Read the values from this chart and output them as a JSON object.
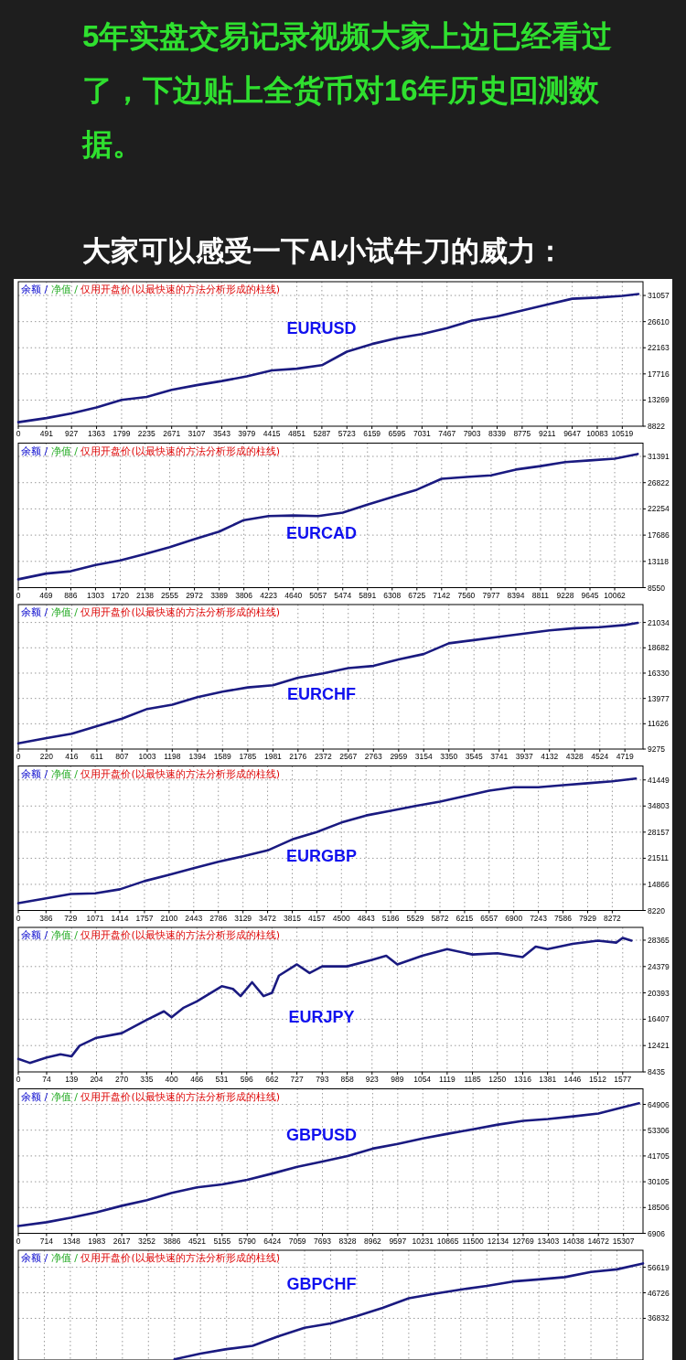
{
  "chart_data": [
    {
      "type": "other",
      "title": "5年实盘交易记录视频大家上边已经看过了，下边贴上全货币对16年历史回测数据。",
      "subtitle": "大家可以感受一下AI小试牛刀的威力："
    },
    {
      "type": "line",
      "title": "EURUSD",
      "annotations": [
        "余额 /",
        "净值 /",
        "仅用开盘价(以最快速的方法分析形成的柱线)"
      ],
      "grid": true,
      "x": [
        0,
        491,
        927,
        1363,
        1799,
        2235,
        2671,
        3107,
        3543,
        3979,
        4415,
        4851,
        5287,
        5723,
        6159,
        6595,
        7031,
        7467,
        7903,
        8339,
        8775,
        9211,
        9647,
        10083,
        10519,
        10800
      ],
      "series": [
        {
          "color": "#1a1a80",
          "values": [
            9500,
            10200,
            11000,
            12000,
            13300,
            13800,
            15000,
            15800,
            16500,
            17300,
            18300,
            18600,
            19200,
            21500,
            22800,
            23800,
            24500,
            25500,
            26800,
            27500,
            28500,
            29500,
            30500,
            30700,
            31000,
            31300
          ]
        }
      ],
      "xlim": [
        0,
        10880
      ],
      "xticks": [
        0,
        491,
        927,
        1363,
        1799,
        2235,
        2671,
        3107,
        3543,
        3979,
        4415,
        4851,
        5287,
        5723,
        6159,
        6595,
        7031,
        7467,
        7903,
        8339,
        8775,
        9211,
        9647,
        10083,
        10519
      ],
      "ylim": [
        8822,
        33400
      ],
      "yticks": [
        8822,
        13269,
        17716,
        22163,
        26610,
        31057
      ]
    },
    {
      "type": "line",
      "title": "EURCAD",
      "annotations": [
        "余额 /",
        "净值 /",
        "仅用开盘价(以最快速的方法分析形成的柱线)"
      ],
      "grid": true,
      "x": [
        0,
        469,
        886,
        1303,
        1720,
        2138,
        2555,
        2972,
        3389,
        3806,
        4223,
        4640,
        5057,
        5474,
        5891,
        6308,
        6725,
        7142,
        7560,
        7977,
        8394,
        8811,
        9228,
        9645,
        10062,
        10450
      ],
      "series": [
        {
          "color": "#1a1a80",
          "values": [
            10000,
            11000,
            11400,
            12500,
            13300,
            14400,
            15600,
            17000,
            18300,
            20300,
            21000,
            21100,
            21000,
            21600,
            23000,
            24300,
            25600,
            27500,
            27800,
            28100,
            29100,
            29700,
            30400,
            30700,
            31000,
            31800
          ]
        }
      ],
      "xlim": [
        0,
        10540
      ],
      "xticks": [
        0,
        469,
        886,
        1303,
        1720,
        2138,
        2555,
        2972,
        3389,
        3806,
        4223,
        4640,
        5057,
        5474,
        5891,
        6308,
        6725,
        7142,
        7560,
        7977,
        8394,
        8811,
        9228,
        9645,
        10062
      ],
      "ylim": [
        8550,
        33700
      ],
      "yticks": [
        8550,
        13118,
        17686,
        22254,
        26822,
        31391
      ]
    },
    {
      "type": "line",
      "title": "EURCHF",
      "annotations": [
        "余额 /",
        "净值 /",
        "仅用开盘价(以最快速的方法分析形成的柱线)"
      ],
      "grid": true,
      "x": [
        0,
        220,
        416,
        611,
        807,
        1003,
        1198,
        1394,
        1589,
        1785,
        1981,
        2176,
        2372,
        2567,
        2763,
        2959,
        3154,
        3350,
        3545,
        3741,
        3937,
        4132,
        4328,
        4524,
        4719,
        4820
      ],
      "series": [
        {
          "color": "#1a1a80",
          "values": [
            9800,
            10300,
            10700,
            11400,
            12100,
            13000,
            13400,
            14100,
            14600,
            15000,
            15200,
            15900,
            16300,
            16800,
            17000,
            17600,
            18100,
            19100,
            19400,
            19700,
            20000,
            20300,
            20500,
            20600,
            20800,
            21000
          ]
        }
      ],
      "xlim": [
        0,
        4860
      ],
      "xticks": [
        0,
        220,
        416,
        611,
        807,
        1003,
        1198,
        1394,
        1589,
        1785,
        1981,
        2176,
        2372,
        2567,
        2763,
        2959,
        3154,
        3350,
        3545,
        3741,
        3937,
        4132,
        4328,
        4524,
        4719
      ],
      "ylim": [
        9275,
        22700
      ],
      "yticks": [
        9275,
        11626,
        13977,
        16330,
        18682,
        21034
      ]
    },
    {
      "type": "line",
      "title": "EURGBP",
      "annotations": [
        "余额 /",
        "净值 /",
        "仅用开盘价(以最快速的方法分析形成的柱线)"
      ],
      "grid": true,
      "x": [
        0,
        386,
        729,
        1071,
        1414,
        1757,
        2100,
        2443,
        2786,
        3129,
        3472,
        3815,
        4157,
        4500,
        4843,
        5186,
        5529,
        5872,
        6215,
        6557,
        6900,
        7243,
        7586,
        7929,
        8272,
        8600
      ],
      "series": [
        {
          "color": "#1a1a80",
          "values": [
            10100,
            11300,
            12400,
            12600,
            13600,
            15700,
            17300,
            19000,
            20600,
            22000,
            23500,
            26300,
            28200,
            30600,
            32400,
            33600,
            34800,
            35900,
            37300,
            38700,
            39600,
            39600,
            40100,
            40600,
            41100,
            41800
          ]
        }
      ],
      "xlim": [
        0,
        8700
      ],
      "xticks": [
        0,
        386,
        729,
        1071,
        1414,
        1757,
        2100,
        2443,
        2786,
        3129,
        3472,
        3815,
        4157,
        4500,
        4843,
        5186,
        5529,
        5872,
        6215,
        6557,
        6900,
        7243,
        7586,
        7929,
        8272
      ],
      "ylim": [
        8220,
        45000
      ],
      "yticks": [
        8220,
        14866,
        21511,
        28157,
        34803,
        41449
      ]
    },
    {
      "type": "line",
      "title": "EURJPY",
      "annotations": [
        "余额 /",
        "净值 /",
        "仅用开盘价(以最快速的方法分析形成的柱线)"
      ],
      "grid": true,
      "x": [
        0,
        30,
        74,
        110,
        139,
        160,
        204,
        270,
        335,
        380,
        400,
        430,
        466,
        531,
        560,
        580,
        610,
        640,
        662,
        680,
        727,
        760,
        793,
        858,
        923,
        960,
        989,
        1054,
        1119,
        1185,
        1250,
        1316,
        1350,
        1381,
        1446,
        1512,
        1560,
        1577,
        1600
      ],
      "series": [
        {
          "color": "#1a1a80",
          "values": [
            10400,
            9800,
            10600,
            11100,
            10800,
            12400,
            13600,
            14300,
            16300,
            17600,
            16700,
            18100,
            19100,
            21400,
            21000,
            19900,
            22000,
            19900,
            20400,
            23000,
            24700,
            23400,
            24400,
            24400,
            25400,
            26000,
            24700,
            26000,
            27000,
            26200,
            26400,
            25800,
            27400,
            27000,
            27800,
            28300,
            28000,
            28700,
            28300
          ]
        }
      ],
      "xlim": [
        0,
        1630
      ],
      "xticks": [
        0,
        74,
        139,
        204,
        270,
        335,
        400,
        466,
        531,
        596,
        662,
        727,
        793,
        858,
        923,
        989,
        1054,
        1119,
        1185,
        1250,
        1316,
        1381,
        1446,
        1512,
        1577
      ],
      "ylim": [
        8435,
        30300
      ],
      "yticks": [
        8435,
        12421,
        16407,
        20393,
        24379,
        28365
      ]
    },
    {
      "type": "line",
      "title": "GBPUSD",
      "annotations": [
        "余额 /",
        "净值 /",
        "仅用开盘价(以最快速的方法分析形成的柱线)"
      ],
      "grid": true,
      "x": [
        0,
        714,
        1348,
        1983,
        2617,
        3252,
        3886,
        4521,
        5155,
        5790,
        6424,
        7059,
        7693,
        8328,
        8962,
        9597,
        10231,
        10865,
        11500,
        12134,
        12769,
        13403,
        14038,
        14672,
        15307,
        15700
      ],
      "series": [
        {
          "color": "#1a1a80",
          "values": [
            10200,
            11900,
            14000,
            16400,
            19300,
            21800,
            25100,
            27600,
            28900,
            31000,
            33800,
            36800,
            39200,
            41700,
            45000,
            47100,
            49600,
            51700,
            53700,
            55800,
            57500,
            58300,
            59500,
            60800,
            63700,
            65400
          ]
        }
      ],
      "xlim": [
        0,
        15800
      ],
      "xticks": [
        0,
        714,
        1348,
        1983,
        2617,
        3252,
        3886,
        4521,
        5155,
        5790,
        6424,
        7059,
        7693,
        8328,
        8962,
        9597,
        10231,
        10865,
        11500,
        12134,
        12769,
        13403,
        14038,
        14672,
        15307
      ],
      "ylim": [
        6906,
        71900
      ],
      "yticks": [
        6906,
        18506,
        30105,
        41705,
        53306,
        64906
      ]
    },
    {
      "type": "line",
      "title": "GBPCHF",
      "annotations": [
        "余额 /",
        "净值 /",
        "仅用开盘价(以最快速的方法分析形成的柱线)"
      ],
      "grid": true,
      "tick_labels": "y",
      "categories": [
        null,
        null,
        null,
        null,
        null,
        null,
        null,
        null,
        null,
        null,
        null,
        null,
        null,
        null,
        null,
        null,
        null,
        null,
        null,
        null,
        null,
        null,
        null,
        null,
        null
      ],
      "series": [
        {
          "color": "#1a1a80",
          "values": [
            null,
            null,
            null,
            null,
            null,
            null,
            21000,
            23200,
            24900,
            26200,
            29900,
            33200,
            34900,
            37700,
            40900,
            44600,
            46400,
            48000,
            49400,
            51100,
            51900,
            52800,
            54800,
            55800,
            58100
          ]
        }
      ],
      "ylim": [
        20700,
        63200
      ],
      "yticks": [
        36832,
        46726,
        56619
      ]
    }
  ]
}
